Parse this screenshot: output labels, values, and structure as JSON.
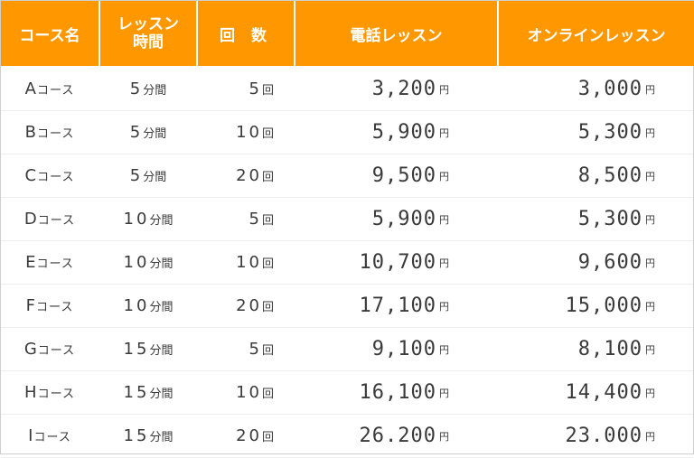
{
  "headers": {
    "course": "コース名",
    "duration_line1": "レッスン",
    "duration_line2": "時間",
    "count": "回 数",
    "phone": "電話レッスン",
    "online": "オンラインレッスン"
  },
  "units": {
    "course_suffix": "コース",
    "minutes": "分間",
    "times": "回",
    "yen": "円"
  },
  "rows": [
    {
      "letter": "A",
      "minutes": "5",
      "times": "5",
      "phone": "3,200",
      "online": "3,000"
    },
    {
      "letter": "B",
      "minutes": "5",
      "times": "10",
      "phone": "5,900",
      "online": "5,300"
    },
    {
      "letter": "C",
      "minutes": "5",
      "times": "20",
      "phone": "9,500",
      "online": "8,500"
    },
    {
      "letter": "D",
      "minutes": "10",
      "times": "5",
      "phone": "5,900",
      "online": "5,300"
    },
    {
      "letter": "E",
      "minutes": "10",
      "times": "10",
      "phone": "10,700",
      "online": "9,600"
    },
    {
      "letter": "F",
      "minutes": "10",
      "times": "20",
      "phone": "17,100",
      "online": "15,000"
    },
    {
      "letter": "G",
      "minutes": "15",
      "times": "5",
      "phone": "9,100",
      "online": "8,100"
    },
    {
      "letter": "H",
      "minutes": "15",
      "times": "10",
      "phone": "16,100",
      "online": "14,400"
    },
    {
      "letter": "I",
      "minutes": "15",
      "times": "20",
      "phone": "26.200",
      "online": "23.000"
    }
  ]
}
